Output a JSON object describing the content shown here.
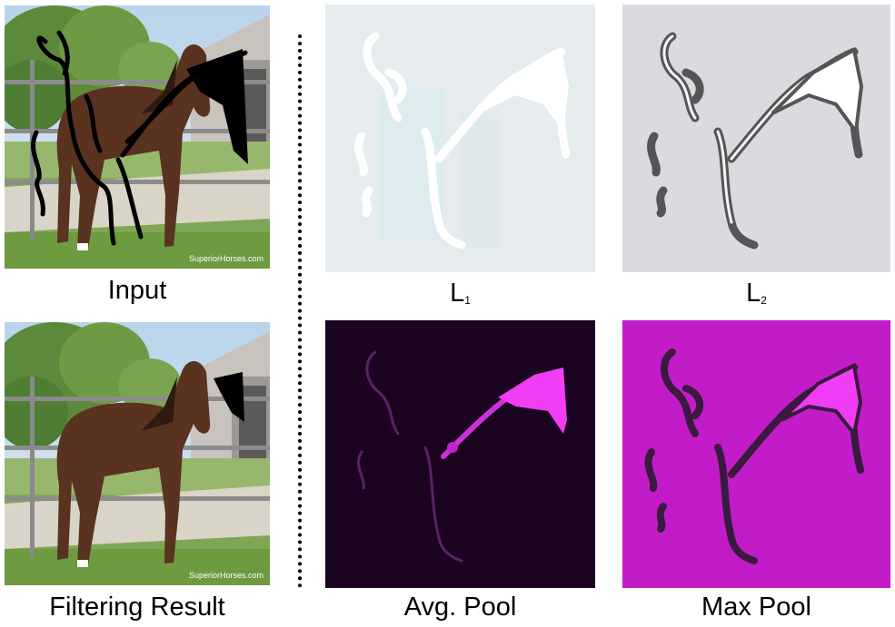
{
  "figure": {
    "left_column": {
      "top_caption": "Input",
      "bottom_caption": "Filtering Result"
    },
    "grid": {
      "top_left": {
        "caption_letter": "L",
        "caption_sub": "1"
      },
      "top_right": {
        "caption_letter": "L",
        "caption_sub": "2"
      },
      "bottom_left": {
        "caption": "Avg. Pool"
      },
      "bottom_right": {
        "caption": "Max Pool"
      }
    },
    "watermark": "SuperiorHorses.com",
    "colors": {
      "l1_background": "#e6ecee",
      "l2_background": "#d9dbe0",
      "avg_pool_background": "#1a0420",
      "max_pool_background": "#c21cc9",
      "magenta_highlight": "#f23df6",
      "scribble": "#000000"
    }
  }
}
